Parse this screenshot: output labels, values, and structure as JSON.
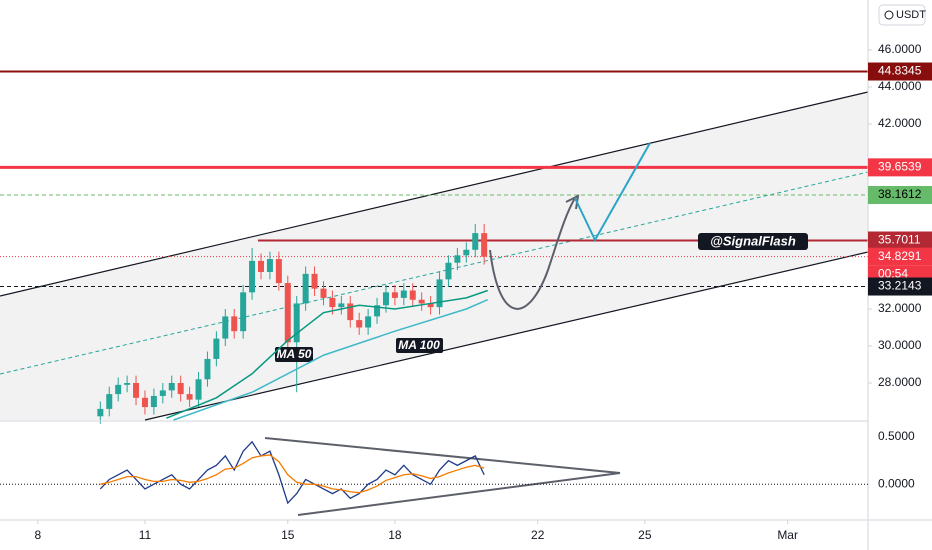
{
  "chart_data": {
    "type": "candlestick",
    "currency": "USDT",
    "annotation": "@SignalFlash",
    "xlim": [
      6.94,
      31.25
    ],
    "xticks": [
      8,
      11,
      15,
      18,
      22,
      25,
      {
        "value": 29,
        "label": "Mar"
      }
    ],
    "ylim": [
      26,
      48.7
    ],
    "yticks": [
      {
        "value": 46,
        "label": "46.0000"
      },
      {
        "value": 44,
        "label": "44.0000"
      },
      {
        "value": 42,
        "label": "42.0000"
      },
      {
        "value": 32,
        "label": "32.0000"
      },
      {
        "value": 30,
        "label": "30.0000"
      },
      {
        "value": 28,
        "label": "28.0000"
      }
    ],
    "up_color": "#26a69a",
    "down_color": "#ef5350",
    "x": [
      9.75,
      10,
      10.25,
      10.5,
      10.75,
      11,
      11.25,
      11.5,
      11.75,
      12,
      12.25,
      12.5,
      12.75,
      13,
      13.25,
      13.5,
      13.75,
      14,
      14.25,
      14.5,
      14.75,
      15,
      15.25,
      15.5,
      15.75,
      16,
      16.25,
      16.5,
      16.75,
      17,
      17.25,
      17.5,
      17.75,
      18,
      18.25,
      18.5,
      18.75,
      19,
      19.25,
      19.5,
      19.75,
      20,
      20.25,
      20.5
    ],
    "open": [
      26.2,
      26.6,
      27.4,
      27.9,
      28.0,
      27.2,
      26.7,
      27.3,
      27.6,
      28.0,
      27.4,
      27.1,
      28.2,
      29.3,
      30.4,
      31.6,
      30.8,
      32.9,
      34.6,
      34.0,
      34.7,
      33.4,
      30.2,
      32.3,
      33.9,
      33.1,
      32.6,
      32.1,
      32.3,
      31.4,
      31.0,
      31.6,
      32.2,
      32.9,
      32.6,
      33.0,
      32.5,
      32.3,
      32.1,
      33.6,
      34.5,
      34.9,
      35.2,
      36.1
    ],
    "high": [
      27.0,
      27.8,
      28.3,
      28.4,
      28.4,
      27.6,
      27.7,
      28.0,
      28.4,
      28.4,
      27.8,
      28.6,
      29.7,
      30.8,
      32.0,
      32.0,
      33.3,
      35.3,
      35.0,
      35.1,
      35.1,
      33.8,
      32.7,
      34.3,
      34.3,
      33.5,
      33.0,
      32.7,
      32.7,
      31.8,
      32.0,
      32.6,
      33.3,
      33.3,
      33.4,
      33.4,
      32.9,
      32.7,
      34.0,
      34.9,
      35.3,
      35.6,
      36.6,
      36.6
    ],
    "low": [
      25.8,
      26.2,
      27.0,
      27.5,
      26.8,
      26.3,
      26.3,
      26.9,
      27.2,
      27.0,
      26.7,
      26.7,
      27.8,
      28.9,
      30.0,
      30.4,
      30.4,
      32.5,
      33.6,
      33.6,
      33.0,
      29.8,
      27.5,
      31.9,
      32.7,
      32.2,
      31.7,
      31.7,
      31.0,
      30.6,
      30.6,
      31.2,
      31.8,
      32.2,
      32.2,
      32.1,
      31.9,
      31.7,
      31.7,
      33.2,
      34.1,
      34.5,
      34.8,
      34.4
    ],
    "close": [
      26.6,
      27.4,
      27.9,
      28.0,
      27.2,
      26.7,
      27.3,
      27.6,
      28.0,
      27.4,
      27.1,
      28.2,
      29.3,
      30.4,
      31.6,
      30.8,
      32.9,
      34.6,
      34.0,
      34.7,
      33.4,
      30.2,
      32.3,
      33.9,
      33.1,
      32.6,
      32.1,
      32.3,
      31.4,
      31.0,
      31.6,
      32.2,
      32.9,
      32.6,
      33.0,
      32.5,
      32.3,
      32.1,
      33.6,
      34.5,
      34.9,
      35.2,
      36.1,
      34.83
    ],
    "ma": [
      {
        "name": "MA 50",
        "color": "#089981",
        "x": [
          11.6,
          13,
          14,
          15,
          16,
          17,
          18,
          19,
          20,
          20.6
        ],
        "values": [
          26.1,
          27.2,
          28.5,
          30.3,
          31.8,
          32.2,
          32.0,
          32.3,
          32.6,
          33.0
        ]
      },
      {
        "name": "MA 100",
        "color": "#3fb8c8",
        "x": [
          11.8,
          14,
          16,
          18,
          20,
          20.6
        ],
        "values": [
          26.0,
          27.5,
          29.5,
          30.8,
          32.0,
          32.5
        ]
      }
    ],
    "price_levels": [
      {
        "value": 44.8345,
        "color": "#880e0e",
        "text_color": "#ffffff"
      },
      {
        "value": 39.6539,
        "color": "#f23645",
        "text_color": "#ffffff"
      },
      {
        "value": 38.1612,
        "color": "#66bb6a",
        "text_color": "#000000"
      },
      {
        "value": 35.7011,
        "color": "#b22833",
        "text_color": "#ffffff"
      },
      {
        "value": 34.8291,
        "color": "#f23645",
        "text_color": "#ffffff",
        "countdown": "00:54"
      },
      {
        "value": 33.2143,
        "color": "#131722",
        "text_color": "#ffffff"
      }
    ],
    "oscillator": {
      "ylim": [
        -0.38,
        0.66
      ],
      "yticks": [
        {
          "value": 0.5,
          "label": "0.5000"
        },
        {
          "value": 0,
          "label": "0.0000"
        }
      ],
      "color": "#1e3a8a",
      "signal_color": "#f57c00",
      "values": [
        -0.05,
        0.05,
        0.1,
        0.15,
        0.05,
        -0.05,
        0.0,
        0.05,
        0.1,
        0.0,
        -0.05,
        0.05,
        0.15,
        0.2,
        0.3,
        0.15,
        0.35,
        0.45,
        0.3,
        0.35,
        0.1,
        -0.2,
        -0.1,
        0.05,
        0.0,
        -0.05,
        -0.1,
        -0.05,
        -0.15,
        -0.1,
        0.0,
        0.05,
        0.15,
        0.1,
        0.2,
        0.1,
        0.05,
        0.0,
        0.15,
        0.25,
        0.2,
        0.25,
        0.3,
        0.1
      ],
      "signal": [
        0.0,
        0.02,
        0.05,
        0.08,
        0.08,
        0.05,
        0.03,
        0.03,
        0.05,
        0.04,
        0.02,
        0.03,
        0.06,
        0.1,
        0.16,
        0.17,
        0.22,
        0.28,
        0.3,
        0.31,
        0.24,
        0.1,
        0.02,
        0.0,
        0.0,
        -0.02,
        -0.05,
        -0.06,
        -0.08,
        -0.09,
        -0.06,
        -0.02,
        0.04,
        0.07,
        0.1,
        0.11,
        0.09,
        0.06,
        0.08,
        0.12,
        0.15,
        0.18,
        0.2,
        0.17
      ]
    }
  }
}
